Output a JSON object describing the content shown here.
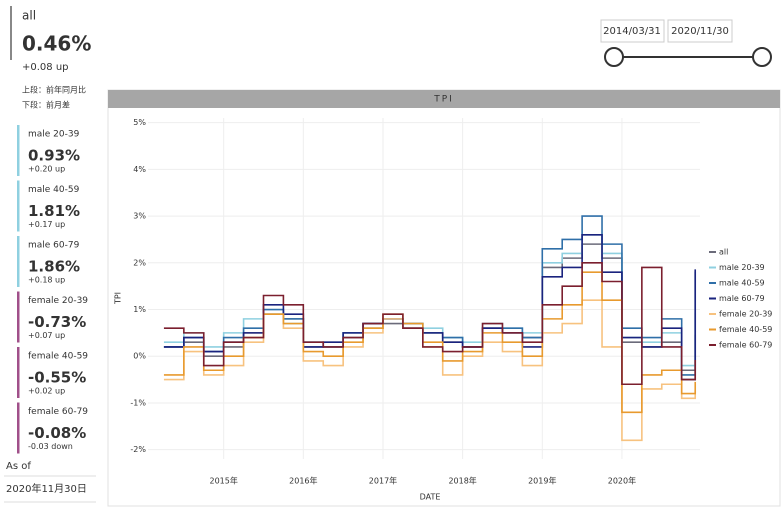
{
  "summary": {
    "label": "all",
    "value": "0.46%",
    "change": "+0.08 up",
    "notes": [
      "上段：前年同月比",
      "下段：前月差"
    ]
  },
  "segments": [
    {
      "label": "male 20-39",
      "value": "0.93%",
      "change": "+0.20 up",
      "color": "#8fd0e0"
    },
    {
      "label": "male 40-59",
      "value": "1.81%",
      "change": "+0.17 up",
      "color": "#8fd0e0"
    },
    {
      "label": "male 60-79",
      "value": "1.86%",
      "change": "+0.18 up",
      "color": "#8fd0e0"
    },
    {
      "label": "female 20-39",
      "value": "-0.73%",
      "change": "+0.07 up",
      "color": "#a0508a"
    },
    {
      "label": "female 40-59",
      "value": "-0.55%",
      "change": "+0.02 up",
      "color": "#a0508a"
    },
    {
      "label": "female 60-79",
      "value": "-0.08%",
      "change": "-0.03 down",
      "color": "#a0508a"
    }
  ],
  "as_of": {
    "label": "As of",
    "date": "2020年11月30日"
  },
  "date_range": {
    "start": "2014/03/31",
    "end": "2020/11/30"
  },
  "chart_data": {
    "type": "line",
    "line_style": "step",
    "title": "TPI",
    "x_label": "DATE",
    "y_label": "TPI",
    "grid": true,
    "legend": "right",
    "x": [
      2014.25,
      2014.5,
      2014.75,
      2015,
      2015.25,
      2015.5,
      2015.75,
      2016,
      2016.25,
      2016.5,
      2016.75,
      2017,
      2017.25,
      2017.5,
      2017.75,
      2018,
      2018.25,
      2018.5,
      2018.75,
      2019,
      2019.25,
      2019.5,
      2019.75,
      2020,
      2020.25,
      2020.5,
      2020.75,
      2020.92
    ],
    "xlim": [
      2014.05,
      2020.98
    ],
    "xticks": [
      {
        "value": 2015,
        "label": "2015年"
      },
      {
        "value": 2016,
        "label": "2016年"
      },
      {
        "value": 2017,
        "label": "2017年"
      },
      {
        "value": 2018,
        "label": "2018年"
      },
      {
        "value": 2019,
        "label": "2019年"
      },
      {
        "value": 2020,
        "label": "2020年"
      }
    ],
    "ylim": [
      -2.2,
      5.1
    ],
    "yticks": [
      {
        "value": -2,
        "label": "-2%"
      },
      {
        "value": -1,
        "label": "-1%"
      },
      {
        "value": 0,
        "label": "0%"
      },
      {
        "value": 1,
        "label": "1%"
      },
      {
        "value": 2,
        "label": "2%"
      },
      {
        "value": 3,
        "label": "3%"
      },
      {
        "value": 4,
        "label": "4%"
      },
      {
        "value": 5,
        "label": "5%"
      }
    ],
    "series": [
      {
        "name": "all",
        "color": "#6b6b7a",
        "values": [
          0.2,
          0.3,
          0,
          0.2,
          0.5,
          0.9,
          0.8,
          0.2,
          0.2,
          0.4,
          0.6,
          0.7,
          0.6,
          0.5,
          0.3,
          0.2,
          0.6,
          0.5,
          0.4,
          1.9,
          2.1,
          2.4,
          2.1,
          0.3,
          0.2,
          0.3,
          -0.3,
          0.46
        ]
      },
      {
        "name": "male 20-39",
        "color": "#8fd0e0",
        "values": [
          0.3,
          0.5,
          0.2,
          0.5,
          0.8,
          0.9,
          0.7,
          0.3,
          0.3,
          0.5,
          0.7,
          0.8,
          0.7,
          0.6,
          0.4,
          0.3,
          0.7,
          0.6,
          0.5,
          2.0,
          2.2,
          2.6,
          2.2,
          0.4,
          0.3,
          0.5,
          -0.2,
          0.93
        ]
      },
      {
        "name": "male 40-59",
        "color": "#2f6fa8",
        "values": [
          0.2,
          0.4,
          0.1,
          0.4,
          0.6,
          1.0,
          0.8,
          0.3,
          0.2,
          0.5,
          0.7,
          0.8,
          0.7,
          0.5,
          0.4,
          0.2,
          0.6,
          0.6,
          0.4,
          2.3,
          2.5,
          3.0,
          2.4,
          0.6,
          0.4,
          0.8,
          -0.4,
          1.81
        ]
      },
      {
        "name": "male 60-79",
        "color": "#1a237e",
        "values": [
          0.2,
          0.4,
          0.1,
          0.3,
          0.5,
          1.1,
          0.9,
          0.2,
          0.3,
          0.5,
          0.7,
          0.8,
          0.6,
          0.5,
          0.3,
          0.2,
          0.6,
          0.5,
          0.2,
          1.7,
          1.9,
          2.6,
          1.8,
          0.4,
          0.2,
          0.6,
          -0.5,
          1.86
        ]
      },
      {
        "name": "female 20-39",
        "color": "#f7c27f",
        "values": [
          -0.5,
          0.1,
          -0.4,
          -0.2,
          0.3,
          0.9,
          0.6,
          -0.1,
          -0.2,
          0.2,
          0.5,
          0.8,
          0.6,
          0.2,
          -0.4,
          0,
          0.3,
          0.1,
          -0.2,
          0.5,
          0.7,
          1.2,
          0.2,
          -1.8,
          -0.7,
          -0.6,
          -0.9,
          -0.73
        ]
      },
      {
        "name": "female 40-59",
        "color": "#e89a2e",
        "values": [
          -0.4,
          0.2,
          -0.3,
          0,
          0.4,
          0.9,
          0.7,
          0.1,
          0,
          0.3,
          0.6,
          0.9,
          0.7,
          0.3,
          -0.1,
          0.1,
          0.5,
          0.3,
          0,
          0.8,
          1.1,
          1.8,
          1.2,
          -1.2,
          -0.4,
          -0.3,
          -0.8,
          -0.55
        ]
      },
      {
        "name": "female 60-79",
        "color": "#7b1f2e",
        "values": [
          0.6,
          0.5,
          -0.2,
          0.3,
          0.4,
          1.3,
          1.1,
          0.3,
          0.2,
          0.4,
          0.7,
          0.9,
          0.6,
          0.2,
          0.1,
          0.2,
          0.7,
          0.5,
          0.3,
          1.1,
          1.5,
          2.0,
          1.6,
          -0.6,
          1.9,
          0.2,
          -0.5,
          -0.08
        ]
      }
    ]
  }
}
